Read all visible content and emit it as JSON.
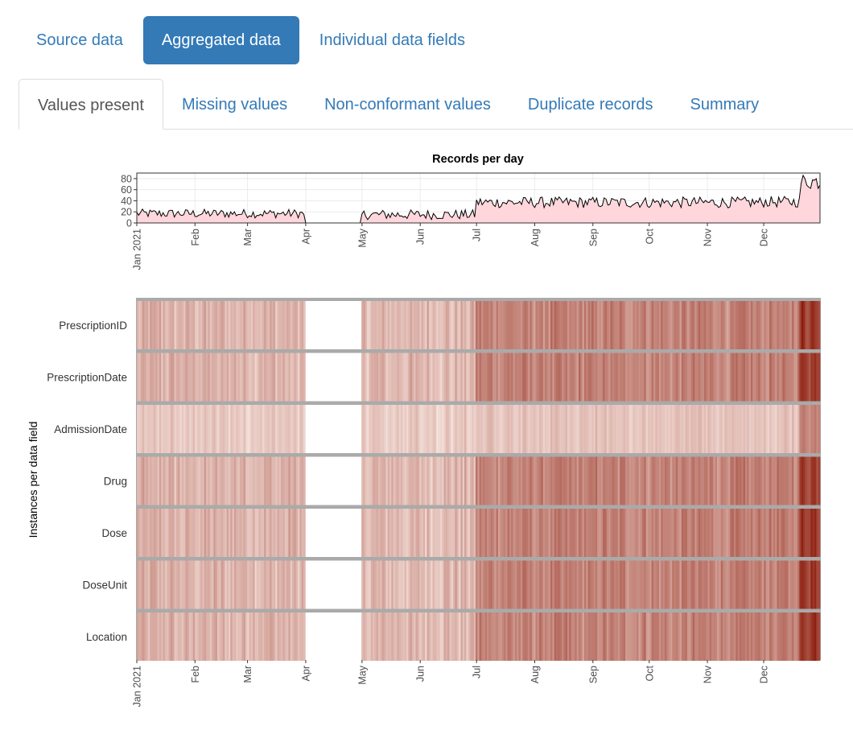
{
  "nav": {
    "pills": [
      {
        "label": "Source data",
        "active": false
      },
      {
        "label": "Aggregated data",
        "active": true
      },
      {
        "label": "Individual data fields",
        "active": false
      }
    ],
    "tabs": [
      {
        "label": "Values present",
        "active": true
      },
      {
        "label": "Missing values",
        "active": false
      },
      {
        "label": "Non-conformant values",
        "active": false
      },
      {
        "label": "Duplicate records",
        "active": false
      },
      {
        "label": "Summary",
        "active": false
      }
    ]
  },
  "colors": {
    "accent": "#337ab7",
    "line": "#000000",
    "area_fill": "#ffd6dc",
    "heat_low": "#fff5f0",
    "heat_high": "#8b1a0a",
    "panel_border": "#aaaaaa"
  },
  "chart_data": [
    {
      "type": "area",
      "title": "Records per day",
      "x_range": [
        "2021-01-01",
        "2021-12-31"
      ],
      "y_ticks": [
        0,
        20,
        40,
        60,
        80
      ],
      "ylim": [
        0,
        90
      ],
      "grid": true,
      "x_ticks": [
        {
          "date": "2021-01-01",
          "label": "Jan 2021"
        },
        {
          "date": "2021-02-01",
          "label": "Feb"
        },
        {
          "date": "2021-03-01",
          "label": "Mar"
        },
        {
          "date": "2021-04-01",
          "label": "Apr"
        },
        {
          "date": "2021-05-01",
          "label": "May"
        },
        {
          "date": "2021-06-01",
          "label": "Jun"
        },
        {
          "date": "2021-07-01",
          "label": "Jul"
        },
        {
          "date": "2021-08-01",
          "label": "Aug"
        },
        {
          "date": "2021-09-01",
          "label": "Sep"
        },
        {
          "date": "2021-10-01",
          "label": "Oct"
        },
        {
          "date": "2021-11-01",
          "label": "Nov"
        },
        {
          "date": "2021-12-01",
          "label": "Dec"
        }
      ],
      "periods": [
        {
          "start": "2021-01-01",
          "end": "2021-03-31",
          "mean": 17,
          "jitter": 8
        },
        {
          "start": "2021-04-01",
          "end": "2021-04-30",
          "mean": 0,
          "jitter": 0
        },
        {
          "start": "2021-05-01",
          "end": "2021-06-30",
          "mean": 15,
          "jitter": 9
        },
        {
          "start": "2021-07-01",
          "end": "2021-11-30",
          "mean": 37,
          "jitter": 10
        },
        {
          "start": "2021-12-01",
          "end": "2021-12-20",
          "mean": 38,
          "jitter": 10
        },
        {
          "start": "2021-12-21",
          "end": "2021-12-31",
          "mean": 75,
          "jitter": 15
        }
      ]
    },
    {
      "type": "heatmap",
      "ylabel": "Instances per data field",
      "x_range": [
        "2021-01-01",
        "2021-12-31"
      ],
      "rows": [
        {
          "name": "PrescriptionID",
          "scale": 1.0
        },
        {
          "name": "PrescriptionDate",
          "scale": 1.0
        },
        {
          "name": "AdmissionDate",
          "scale": 0.55
        },
        {
          "name": "Drug",
          "scale": 1.0
        },
        {
          "name": "Dose",
          "scale": 1.0
        },
        {
          "name": "DoseUnit",
          "scale": 1.0
        },
        {
          "name": "Location",
          "scale": 1.0
        }
      ],
      "empty_period": {
        "start": "2021-04-01",
        "end": "2021-04-30"
      }
    }
  ]
}
